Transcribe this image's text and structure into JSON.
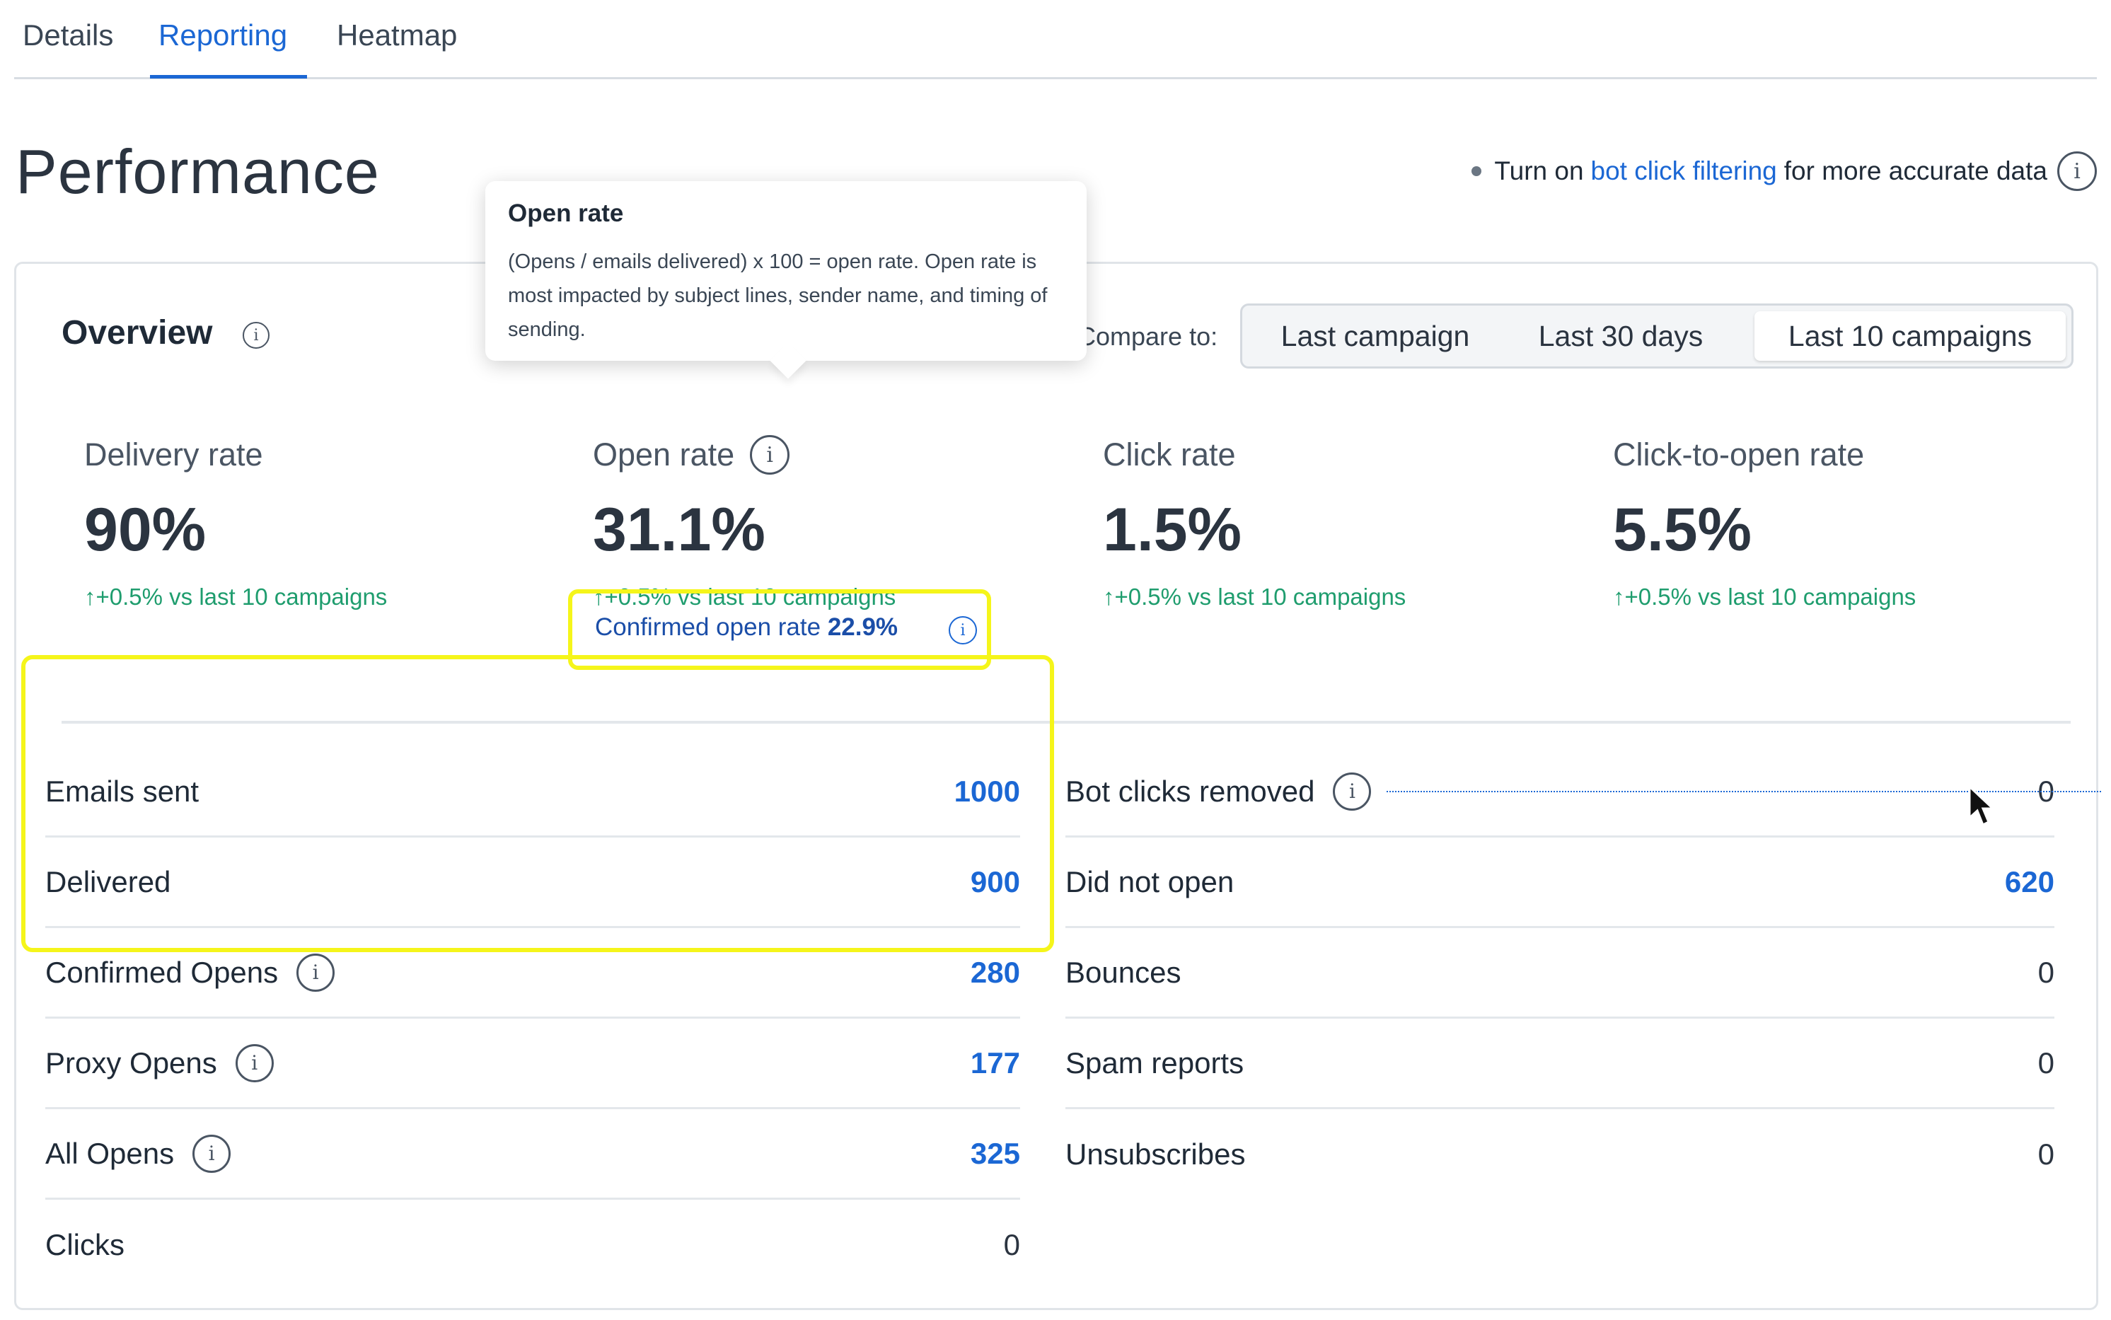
{
  "tabs": [
    {
      "label": "Details",
      "active": false
    },
    {
      "label": "Reporting",
      "active": true
    },
    {
      "label": "Heatmap",
      "active": false
    }
  ],
  "page_title": "Performance",
  "notice": {
    "prefix": "Turn on",
    "link": "bot click filtering",
    "suffix": "for more accurate data"
  },
  "overview": {
    "title": "Overview",
    "compare_label": "Compare to:",
    "compare_options": [
      "Last campaign",
      "Last 30 days",
      "Last 10 campaigns"
    ],
    "selected_option": "Last 10 campaigns"
  },
  "tooltip": {
    "title": "Open rate",
    "body": "(Opens / emails delivered) x 100 = open rate. Open rate is most impacted by subject lines, sender name, and timing of sending."
  },
  "metrics": [
    {
      "label": "Delivery rate",
      "value": "90%",
      "delta": "+0.5% vs last 10 campaigns"
    },
    {
      "label": "Open rate",
      "value": "31.1%",
      "delta": "+0.5% vs last 10 campaigns"
    },
    {
      "label": "Click rate",
      "value": "1.5%",
      "delta": "+0.5% vs last 10 campaigns"
    },
    {
      "label": "Click-to-open rate",
      "value": "5.5%",
      "delta": "+0.5% vs last 10 campaigns"
    }
  ],
  "confirmed_open_rate": {
    "label": "Confirmed open rate",
    "value": "22.9%"
  },
  "left_stats": [
    {
      "name": "Emails sent",
      "value": "1000"
    },
    {
      "name": "Delivered",
      "value": "900"
    },
    {
      "name": "Confirmed Opens",
      "value": "280"
    },
    {
      "name": "Proxy Opens",
      "value": "177"
    },
    {
      "name": "All Opens",
      "value": "325"
    },
    {
      "name": "Clicks",
      "value": "0"
    }
  ],
  "right_stats": [
    {
      "name": "Bot clicks removed",
      "value": "0"
    },
    {
      "name": "Did not open",
      "value": "620"
    },
    {
      "name": "Bounces",
      "value": "0"
    },
    {
      "name": "Spam reports",
      "value": "0"
    },
    {
      "name": "Unsubscribes",
      "value": "0"
    }
  ],
  "colors": {
    "accent": "#1b67d4",
    "positive": "#1f9d6e",
    "highlight": "#f5f51a",
    "text": "#1f2a37"
  }
}
